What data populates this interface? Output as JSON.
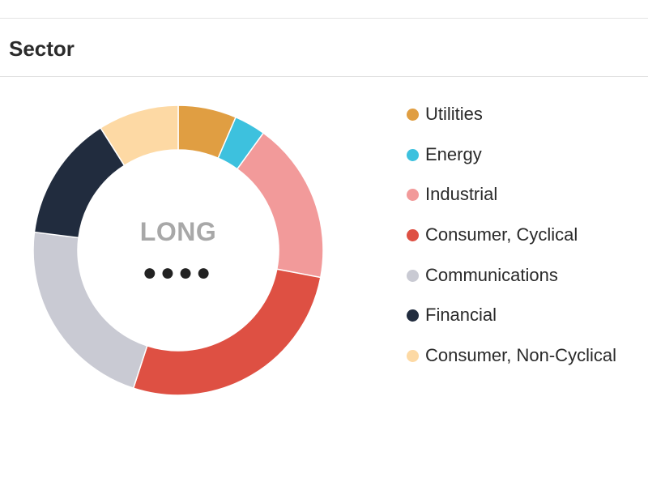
{
  "header": {
    "title": "Sector"
  },
  "center": {
    "label": "LONG",
    "dots": "●●●●"
  },
  "chart_data": {
    "type": "pie",
    "donut": true,
    "legend_position": "right",
    "categories": [
      "Utilities",
      "Energy",
      "Industrial",
      "Consumer, Cyclical",
      "Communications",
      "Financial",
      "Consumer, Non-Cyclical"
    ],
    "values": [
      6.5,
      3.5,
      18,
      27,
      22,
      14,
      9
    ],
    "colors": [
      "#E09E42",
      "#3DC1DE",
      "#F29A9A",
      "#DE5043",
      "#C9CAD3",
      "#212C3E",
      "#FDD9A4"
    ]
  }
}
